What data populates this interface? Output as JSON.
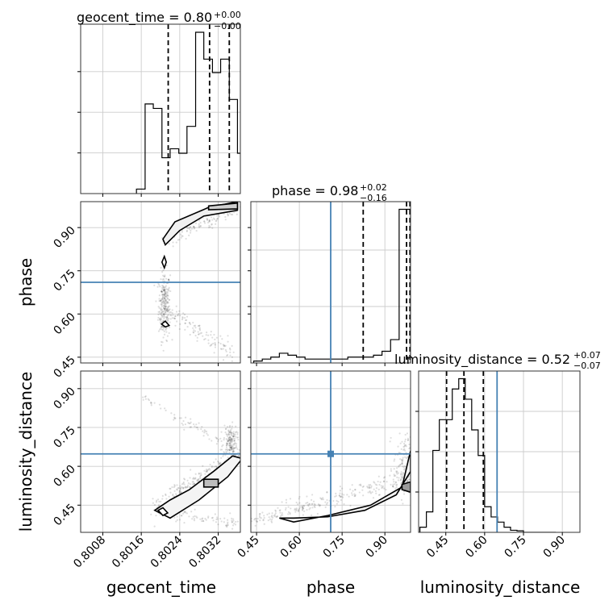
{
  "figure": {
    "panels": {
      "geocent_time": {
        "title": "geocent_time = 0.80",
        "title_sup": "+0.00",
        "title_sub": "−0.00"
      },
      "phase": {
        "title": "phase = 0.98",
        "title_sup": "+0.02",
        "title_sub": "−0.16"
      },
      "luminosity_distance": {
        "title": "luminosity_distance = 0.52",
        "title_sup": "+0.07",
        "title_sub": "−0.07"
      }
    },
    "axis_labels": {
      "geocent_time": "geocent_time",
      "phase": "phase",
      "luminosity_distance": "luminosity_distance"
    },
    "truth_color": "#4682b4",
    "hist_color": "#000000"
  },
  "chart_data": {
    "type": "corner",
    "parameters": [
      "geocent_time",
      "phase",
      "luminosity_distance"
    ],
    "ranges": {
      "geocent_time": [
        0.80034,
        0.80366
      ],
      "phase": [
        0.43,
        0.99
      ],
      "luminosity_distance": [
        0.345,
        0.968
      ]
    },
    "ticks": {
      "geocent_time": [
        "0.8008",
        "0.8016",
        "0.8024",
        "0.8032"
      ],
      "phase": [
        "0.45",
        "0.60",
        "0.75",
        "0.90"
      ],
      "luminosity_distance": [
        "0.45",
        "0.60",
        "0.75",
        "0.90"
      ]
    },
    "truths": {
      "phase": 0.71,
      "luminosity_distance": 0.648
    },
    "quantiles": {
      "geocent_time": [
        0.80216,
        0.80302,
        0.80343
      ],
      "phase": [
        0.824,
        0.976,
        0.988
      ],
      "luminosity_distance": [
        0.453,
        0.52,
        0.595
      ]
    },
    "histograms": {
      "geocent_time": {
        "edges": [
          0.8015,
          0.80168,
          0.80185,
          0.80203,
          0.8022,
          0.80238,
          0.80255,
          0.80273,
          0.8029,
          0.80308,
          0.80325,
          0.80343,
          0.8036,
          0.80375
        ],
        "counts": [
          1,
          20,
          19,
          8,
          10,
          9,
          15,
          36,
          30,
          27,
          30,
          21,
          9
        ]
      },
      "phase": {
        "edges": [
          0.44,
          0.47,
          0.5,
          0.53,
          0.56,
          0.59,
          0.62,
          0.65,
          0.68,
          0.71,
          0.74,
          0.77,
          0.8,
          0.83,
          0.86,
          0.89,
          0.92,
          0.95,
          0.97,
          0.99
        ],
        "counts": [
          1,
          2,
          3,
          5,
          4,
          3,
          2,
          2,
          2,
          2,
          2,
          3,
          3,
          3,
          4,
          6,
          12,
          79,
          79
        ]
      },
      "luminosity_distance": {
        "edges": [
          0.35,
          0.375,
          0.4,
          0.425,
          0.45,
          0.475,
          0.5,
          0.525,
          0.55,
          0.575,
          0.6,
          0.625,
          0.65,
          0.675,
          0.7,
          0.725,
          0.75,
          0.775,
          0.8,
          0.825,
          0.85,
          0.875
        ],
        "counts": [
          1,
          4,
          16,
          22,
          22,
          28,
          30,
          26,
          20,
          15,
          5,
          3,
          2,
          1,
          0.4,
          0.3,
          0,
          0,
          0,
          0,
          0
        ]
      }
    },
    "grid": true
  }
}
